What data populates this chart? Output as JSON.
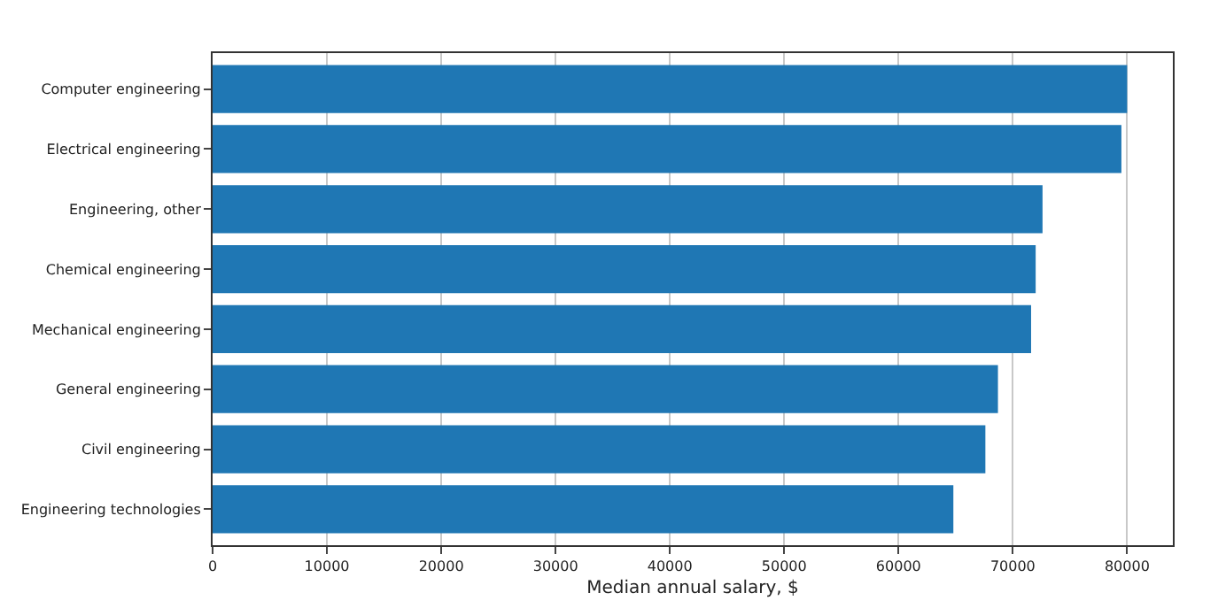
{
  "chart_data": {
    "type": "bar",
    "orientation": "horizontal",
    "xlabel": "Median annual salary, $",
    "categories": [
      "Computer engineering",
      "Electrical engineering",
      "Engineering, other",
      "Chemical engineering",
      "Mechanical engineering",
      "General engineering",
      "Civil engineering",
      "Engineering technologies"
    ],
    "values": [
      80000,
      79500,
      72600,
      72000,
      71600,
      68700,
      67600,
      64800
    ],
    "color": "#1f77b4",
    "xlim": [
      0,
      84000
    ],
    "xticks": [
      0,
      10000,
      20000,
      30000,
      40000,
      50000,
      60000,
      70000,
      80000
    ],
    "grid": "x"
  }
}
